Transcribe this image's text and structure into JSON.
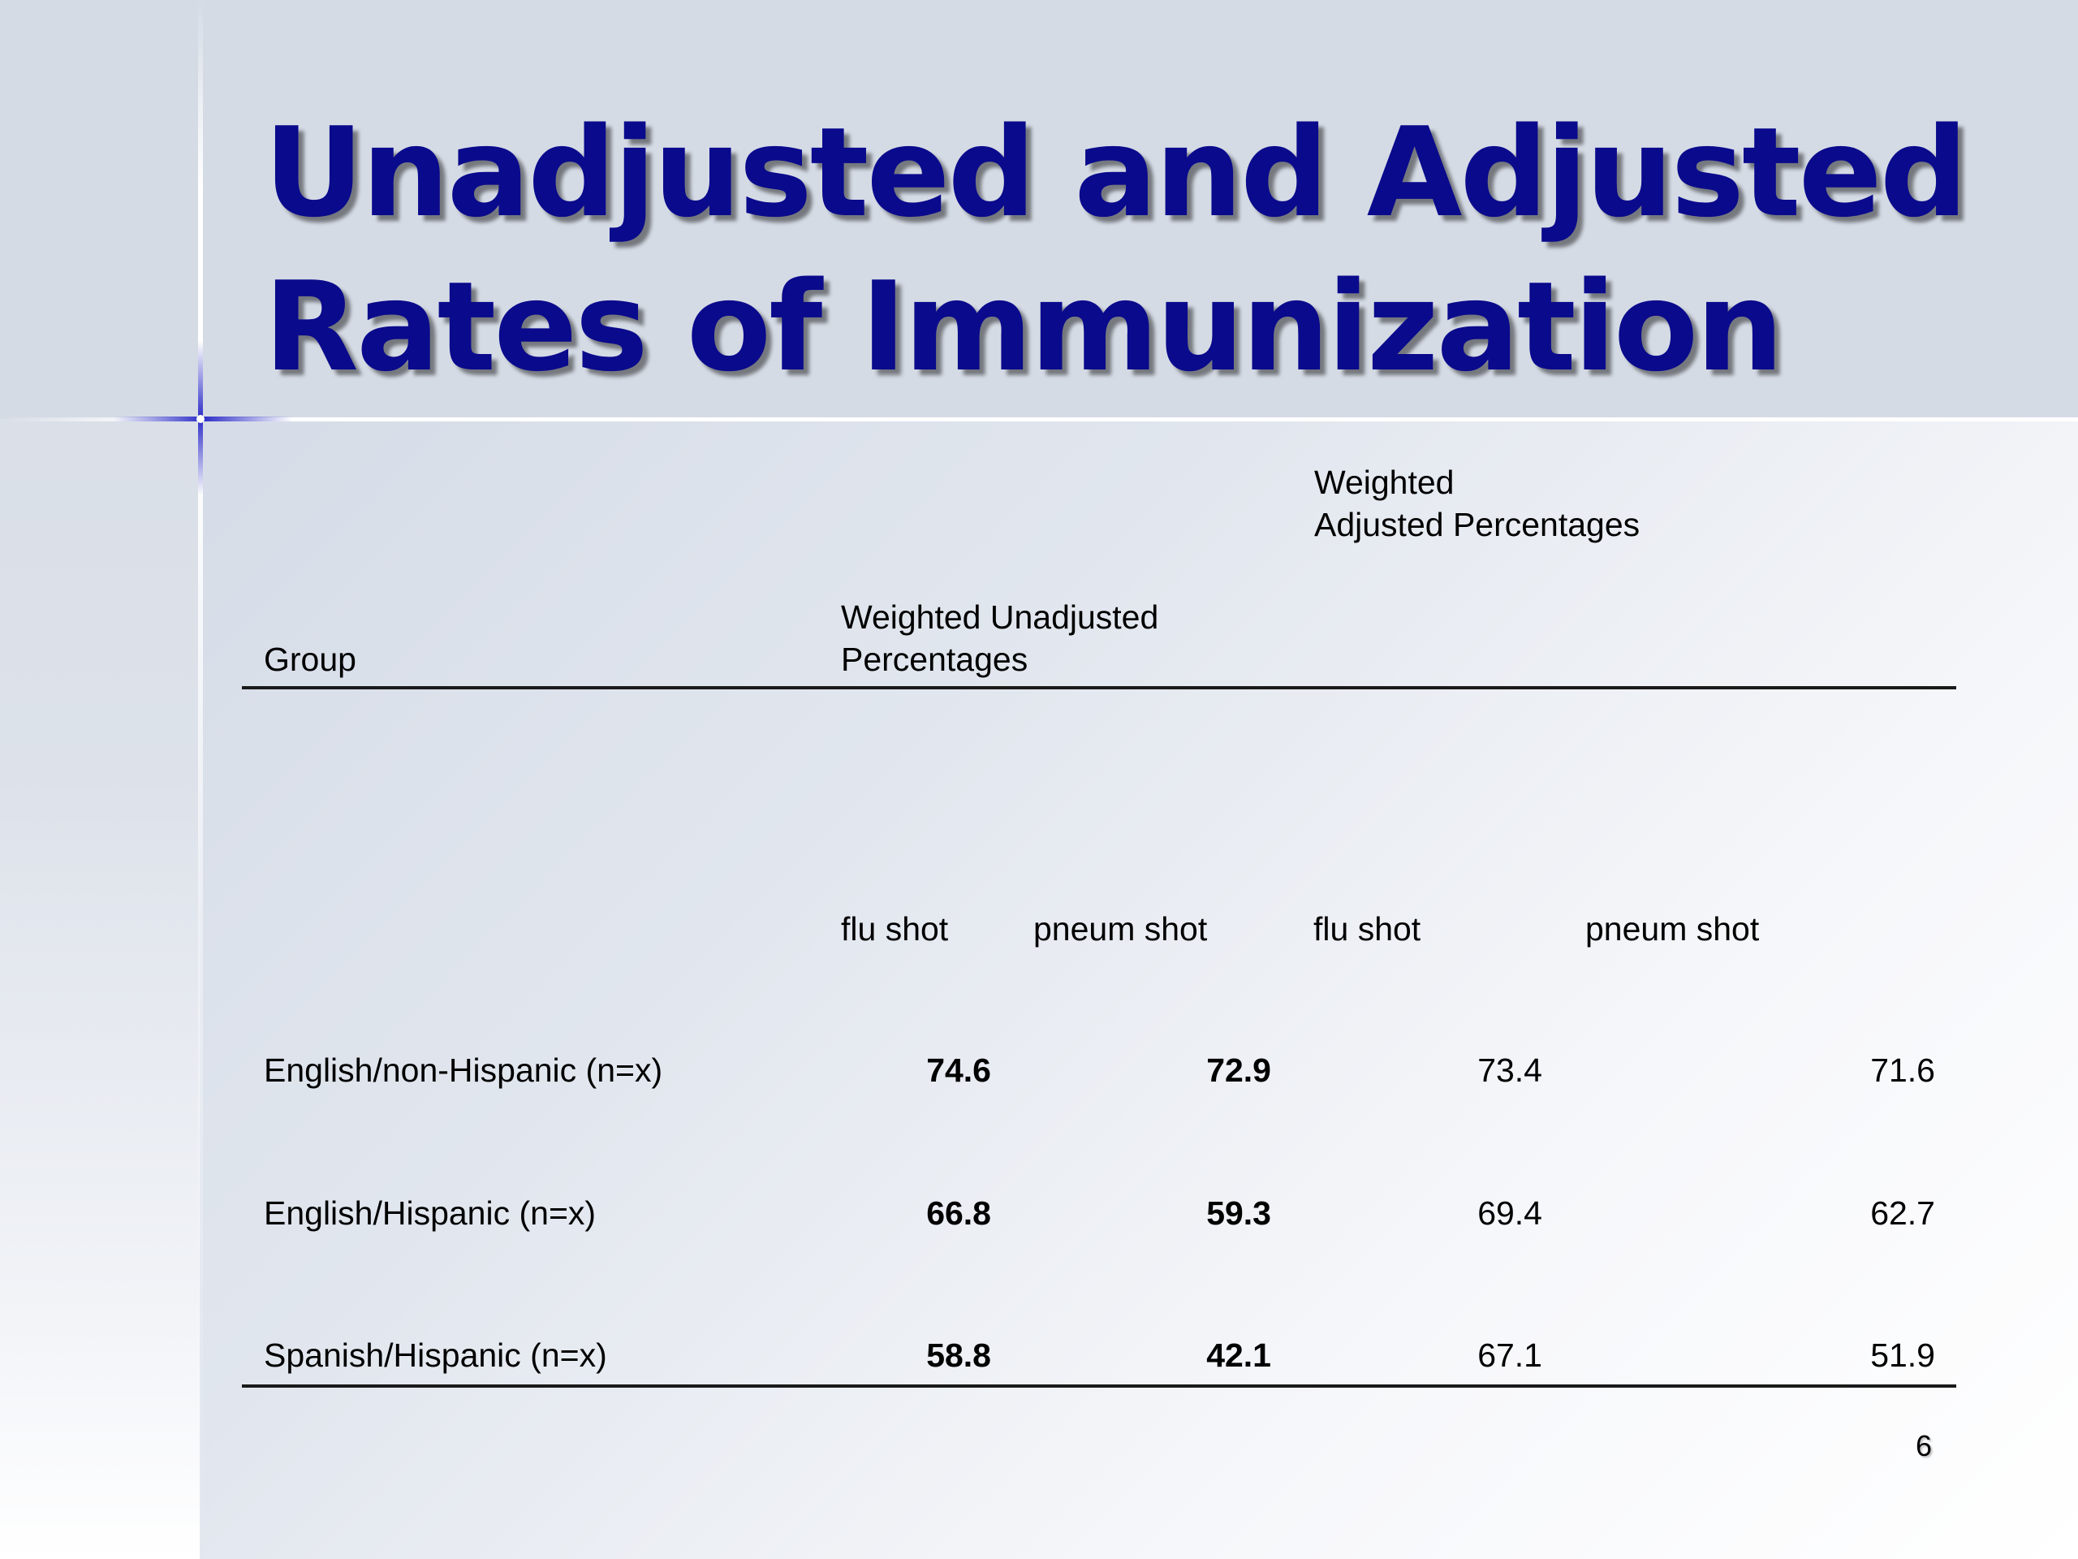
{
  "slide": {
    "title_line1": "Unadjusted and Adjusted",
    "title_line2": "Rates of Immunization",
    "page_number": "6"
  },
  "table": {
    "header_group": "Group",
    "header_unadjusted_line1": "Weighted Unadjusted",
    "header_unadjusted_line2": "Percentages",
    "header_adjusted_line1": "Weighted",
    "header_adjusted_line2": "Adjusted Percentages",
    "subheaders": [
      "flu shot",
      "pneum shot",
      "flu shot",
      "pneum shot"
    ],
    "rows": [
      {
        "group": "English/non-Hispanic  (n=x)",
        "unadj_flu": "74.6",
        "unadj_pneum": "72.9",
        "adj_flu": "73.4",
        "adj_pneum": "71.6"
      },
      {
        "group": "English/Hispanic (n=x)",
        "unadj_flu": "66.8",
        "unadj_pneum": "59.3",
        "adj_flu": "69.4",
        "adj_pneum": "62.7"
      },
      {
        "group": "Spanish/Hispanic (n=x)",
        "unadj_flu": "58.8",
        "unadj_pneum": "42.1",
        "adj_flu": "67.1",
        "adj_pneum": "51.9"
      }
    ]
  },
  "colors": {
    "title": "#0a0a8c",
    "title_band": "#d5dbe5",
    "sparkle": "#2d2dc8"
  }
}
